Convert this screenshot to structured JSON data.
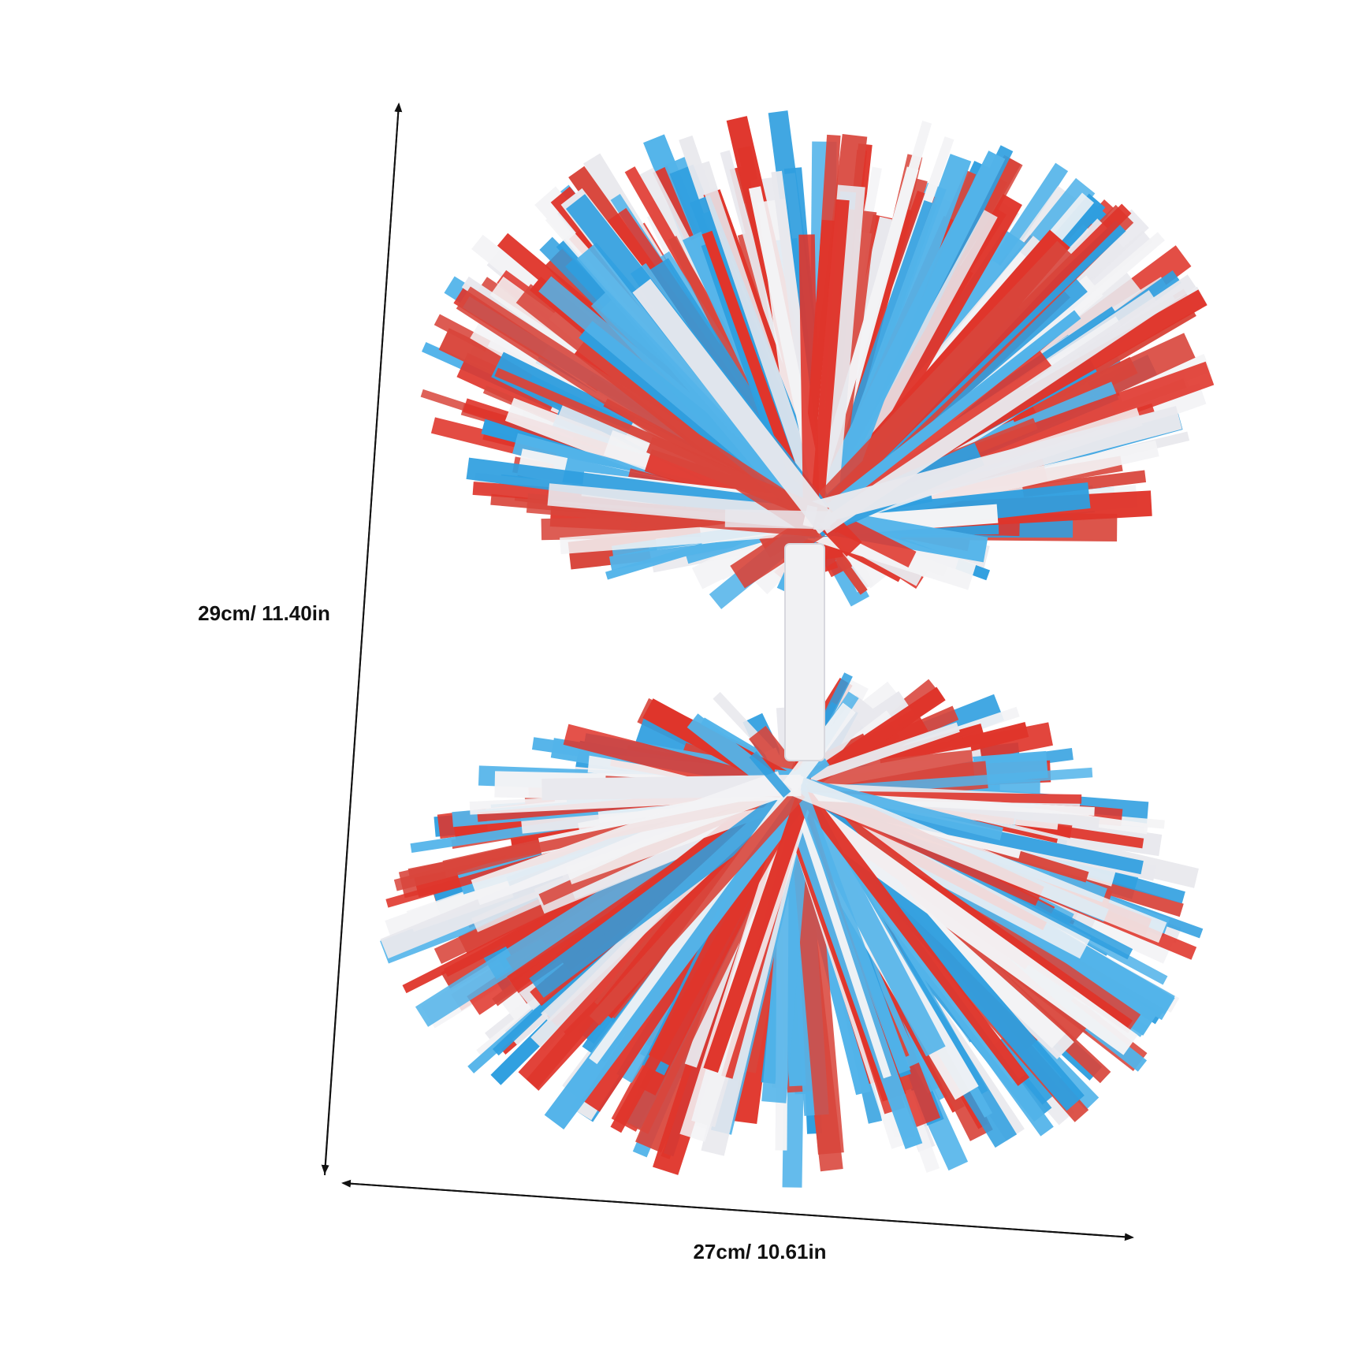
{
  "dimensions": {
    "height": "29cm/ 11.40in",
    "width": "27cm/ 10.61in"
  }
}
